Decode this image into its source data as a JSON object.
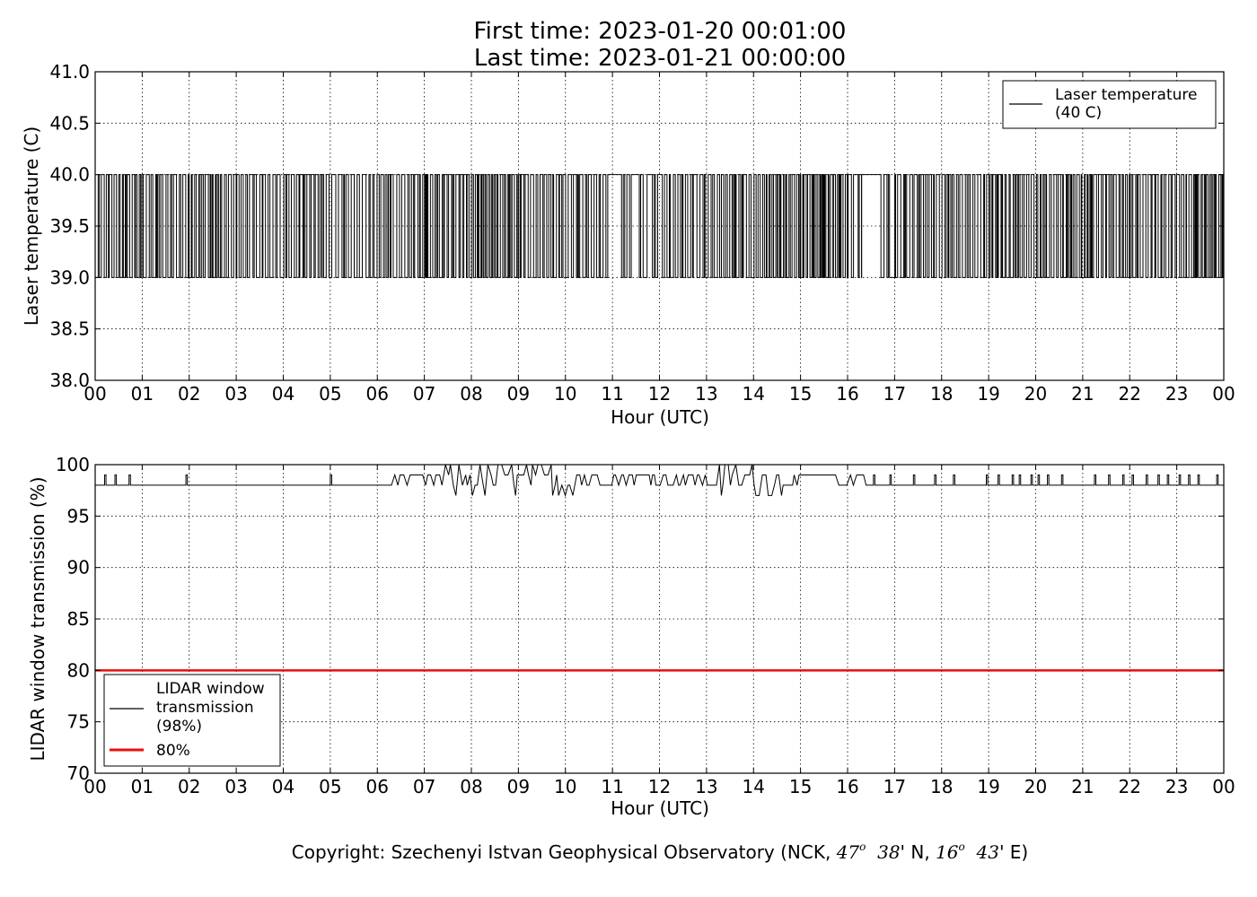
{
  "header": {
    "first_time": "First time: 2023-01-20 00:01:00",
    "last_time": "Last time: 2023-01-21 00:00:00"
  },
  "footer": {
    "copyright_prefix": "Copyright: Szechenyi Istvan Geophysical Observatory (NCK, ",
    "lat_deg": "47",
    "lat_min": "38",
    "lat_dir": "' N, ",
    "lon_deg": "16",
    "lon_min": "43",
    "lon_dir": "' E)",
    "degree_mark": "o"
  },
  "colors": {
    "line": "#000000",
    "threshold": "#e8100c",
    "grid": "#000000",
    "background": "#ffffff"
  },
  "chart_data": [
    {
      "type": "line",
      "title": "",
      "xlabel": "Hour (UTC)",
      "ylabel": "Laser temperature (C)",
      "xlim": [
        0,
        24
      ],
      "ylim": [
        38.0,
        41.0
      ],
      "x_tick_labels": [
        "00",
        "01",
        "02",
        "03",
        "04",
        "05",
        "06",
        "07",
        "08",
        "09",
        "10",
        "11",
        "12",
        "13",
        "14",
        "15",
        "16",
        "17",
        "18",
        "19",
        "20",
        "21",
        "22",
        "23",
        "00"
      ],
      "y_tick_labels": [
        "38.0",
        "38.5",
        "39.0",
        "39.5",
        "40.0",
        "40.5",
        "41.0"
      ],
      "grid": true,
      "legend_position": "top-right",
      "series": [
        {
          "name": "Laser temperature\n(40 C)",
          "legend_lines": [
            "Laser temperature",
            "(40 C)"
          ],
          "values_note": "1-minute samples alternating between 39.0 and 40.0",
          "levels": [
            39.0,
            40.0
          ],
          "approx_toggle_density_per_hour": [
            14,
            12,
            12,
            11,
            12,
            10,
            11,
            13,
            16,
            13,
            12,
            7,
            11,
            13,
            16,
            15,
            7,
            12,
            13,
            13,
            13,
            13,
            12,
            15
          ],
          "gaps_hours": [
            [
              10.9,
              11.15
            ],
            [
              11.4,
              11.5
            ],
            [
              16.3,
              16.65
            ]
          ]
        }
      ]
    },
    {
      "type": "line",
      "title": "",
      "xlabel": "Hour (UTC)",
      "ylabel": "LIDAR window transmission (%)",
      "xlim": [
        0,
        24
      ],
      "ylim": [
        70,
        100
      ],
      "x_tick_labels": [
        "00",
        "01",
        "02",
        "03",
        "04",
        "05",
        "06",
        "07",
        "08",
        "09",
        "10",
        "11",
        "12",
        "13",
        "14",
        "15",
        "16",
        "17",
        "18",
        "19",
        "20",
        "21",
        "22",
        "23",
        "00"
      ],
      "y_tick_labels": [
        "70",
        "75",
        "80",
        "85",
        "90",
        "95",
        "100"
      ],
      "grid": true,
      "legend_position": "bottom-left",
      "series": [
        {
          "name": "LIDAR window\ntransmission\n(98%)",
          "legend_lines": [
            "LIDAR window",
            "transmission",
            "(98%)"
          ],
          "baseline": 98,
          "spikes_hours": [
            0.2,
            0.42,
            0.72,
            1.93,
            5.0,
            16.55,
            16.9,
            17.4,
            17.85,
            18.25,
            18.95,
            19.2,
            19.5,
            19.65,
            19.9,
            20.05,
            20.25,
            20.55,
            21.25,
            21.55,
            21.85,
            22.05,
            22.35,
            22.6,
            22.8,
            23.05,
            23.25,
            23.45,
            23.85
          ],
          "spike_value": 99,
          "noisy_interval_hours": [
            6.3,
            16.4
          ],
          "noisy_range": [
            96,
            100
          ]
        },
        {
          "name": "80%",
          "legend_lines": [
            "80%"
          ],
          "constant": 80
        }
      ]
    }
  ]
}
